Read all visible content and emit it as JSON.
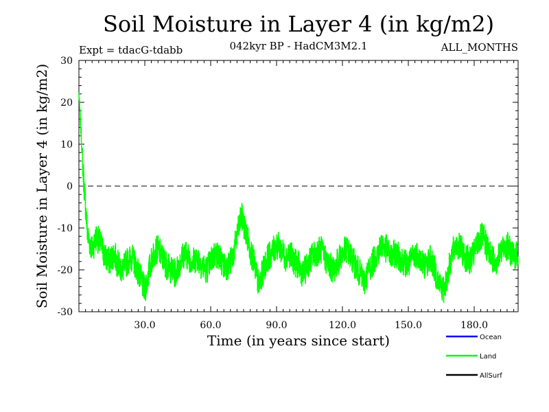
{
  "chart_data": {
    "type": "line",
    "title": "Soil Moisture in Layer 4 (in kg/m2)",
    "subtitle_left": "Expt = tdacG-tdabb",
    "subtitle_center": "042kyr BP - HadCM3M2.1",
    "subtitle_right": "ALL_MONTHS",
    "xlabel": "Time (in years since start)",
    "ylabel": "Soil Moisture in Layer 4 (in kg/m2)",
    "xlim": [
      0,
      200
    ],
    "ylim": [
      -30,
      30
    ],
    "x_ticks": [
      30,
      60,
      90,
      120,
      150,
      180
    ],
    "x_tick_labels": [
      "30.0",
      "60.0",
      "90.0",
      "120.0",
      "150.0",
      "180.0"
    ],
    "y_ticks": [
      -30,
      -20,
      -10,
      0,
      10,
      20,
      30
    ],
    "y_tick_labels": [
      "-30",
      "-20",
      "-10",
      "0",
      "10",
      "20",
      "30"
    ],
    "zero_line": 0,
    "series": [
      {
        "name": "Land",
        "color": "#00ff00",
        "x": [
          0,
          2,
          4,
          6,
          8,
          10,
          12,
          14,
          16,
          18,
          20,
          22,
          24,
          26,
          28,
          30,
          32,
          34,
          36,
          38,
          40,
          42,
          44,
          46,
          48,
          50,
          52,
          54,
          56,
          58,
          60,
          62,
          64,
          66,
          68,
          70,
          72,
          74,
          76,
          78,
          80,
          82,
          84,
          86,
          88,
          90,
          92,
          94,
          96,
          98,
          100,
          102,
          104,
          106,
          108,
          110,
          112,
          114,
          116,
          118,
          120,
          122,
          124,
          126,
          128,
          130,
          132,
          134,
          136,
          138,
          140,
          142,
          144,
          146,
          148,
          150,
          152,
          154,
          156,
          158,
          160,
          162,
          164,
          166,
          168,
          170,
          172,
          174,
          176,
          178,
          180,
          182,
          184,
          186,
          188,
          190,
          192,
          194,
          196,
          198,
          200
        ],
        "values": [
          22,
          3,
          -12,
          -15,
          -12,
          -14,
          -17,
          -18,
          -16,
          -19,
          -20,
          -18,
          -17,
          -19,
          -22,
          -25,
          -20,
          -16,
          -15,
          -17,
          -19,
          -20,
          -21,
          -18,
          -16,
          -17,
          -18,
          -17,
          -19,
          -20,
          -18,
          -16,
          -17,
          -19,
          -19,
          -17,
          -12,
          -7,
          -11,
          -15,
          -19,
          -24,
          -20,
          -17,
          -16,
          -14,
          -15,
          -17,
          -16,
          -18,
          -19,
          -21,
          -19,
          -17,
          -16,
          -15,
          -17,
          -19,
          -20,
          -18,
          -16,
          -15,
          -17,
          -19,
          -21,
          -23,
          -20,
          -18,
          -16,
          -14,
          -15,
          -17,
          -16,
          -17,
          -18,
          -19,
          -17,
          -16,
          -18,
          -19,
          -17,
          -20,
          -23,
          -25,
          -21,
          -16,
          -14,
          -15,
          -17,
          -18,
          -16,
          -13,
          -12,
          -15,
          -17,
          -18,
          -16,
          -14,
          -15,
          -17,
          -16
        ]
      },
      {
        "name": "Ocean",
        "color": "#0000ff",
        "values": []
      },
      {
        "name": "AllSurf",
        "color": "#000000",
        "values": []
      }
    ],
    "legend": [
      {
        "label": "Ocean",
        "color": "#0000ff"
      },
      {
        "label": "Land",
        "color": "#00ff00"
      },
      {
        "label": "AllSurf",
        "color": "#000000"
      }
    ]
  }
}
